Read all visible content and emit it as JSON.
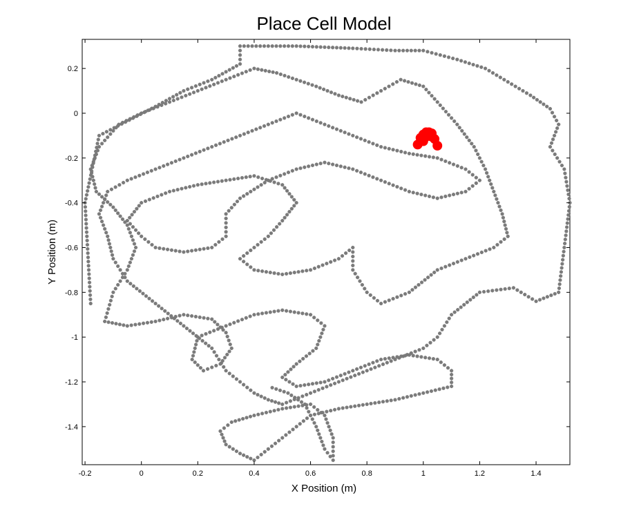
{
  "chart_data": {
    "type": "scatter",
    "title": "Place Cell Model",
    "xlabel": "X Position (m)",
    "ylabel": "Y Position (m)",
    "xlim": [
      -0.21,
      1.52
    ],
    "ylim": [
      -1.57,
      0.33
    ],
    "xticks": [
      "-0.2",
      "0",
      "0.2",
      "0.4",
      "0.6",
      "0.8",
      "1",
      "1.2",
      "1.4"
    ],
    "xtick_values": [
      -0.2,
      0,
      0.2,
      0.4,
      0.6,
      0.8,
      1.0,
      1.2,
      1.4
    ],
    "yticks": [
      "0.2",
      "0",
      "-0.2",
      "-0.4",
      "-0.6",
      "-0.8",
      "-1",
      "-1.2",
      "-1.4"
    ],
    "ytick_values": [
      0.2,
      0,
      -0.2,
      -0.4,
      -0.6,
      -0.8,
      -1.0,
      -1.2,
      -1.4
    ],
    "grid": false,
    "colors": {
      "trajectory": "#7a7a7a",
      "firing": "#ff0000"
    },
    "series": [
      {
        "role": "trajectory",
        "marker": "asterisk",
        "path": [
          [
            -0.18,
            -0.85
          ],
          [
            -0.2,
            -0.4
          ],
          [
            -0.15,
            -0.1
          ],
          [
            0.05,
            0.03
          ],
          [
            0.15,
            0.1
          ],
          [
            0.25,
            0.15
          ],
          [
            0.35,
            0.22
          ],
          [
            0.35,
            0.3
          ],
          [
            0.55,
            0.3
          ],
          [
            0.75,
            0.29
          ],
          [
            0.9,
            0.28
          ],
          [
            1.0,
            0.28
          ],
          [
            1.12,
            0.24
          ],
          [
            1.22,
            0.2
          ],
          [
            1.3,
            0.14
          ],
          [
            1.38,
            0.08
          ],
          [
            1.45,
            0.02
          ],
          [
            1.48,
            -0.05
          ],
          [
            1.45,
            -0.15
          ],
          [
            1.5,
            -0.25
          ],
          [
            1.52,
            -0.4
          ],
          [
            1.5,
            -0.6
          ],
          [
            1.48,
            -0.8
          ],
          [
            1.4,
            -0.84
          ],
          [
            1.32,
            -0.78
          ],
          [
            1.2,
            -0.8
          ],
          [
            1.1,
            -0.9
          ],
          [
            1.05,
            -1.0
          ],
          [
            1.0,
            -1.05
          ],
          [
            0.9,
            -1.1
          ],
          [
            0.8,
            -1.15
          ],
          [
            0.7,
            -1.2
          ],
          [
            0.6,
            -1.25
          ],
          [
            0.5,
            -1.3
          ],
          [
            0.45,
            -1.28
          ],
          [
            0.4,
            -1.25
          ],
          [
            0.35,
            -1.2
          ],
          [
            0.3,
            -1.15
          ],
          [
            0.25,
            -1.05
          ],
          [
            0.15,
            -0.95
          ],
          [
            0.05,
            -0.85
          ],
          [
            -0.05,
            -0.75
          ],
          [
            -0.1,
            -0.65
          ],
          [
            -0.12,
            -0.55
          ],
          [
            -0.15,
            -0.45
          ],
          [
            -0.12,
            -0.35
          ],
          [
            -0.05,
            -0.3
          ],
          [
            0.05,
            -0.25
          ],
          [
            0.15,
            -0.2
          ],
          [
            0.25,
            -0.15
          ],
          [
            0.35,
            -0.1
          ],
          [
            0.45,
            -0.05
          ],
          [
            0.55,
            0.0
          ],
          [
            0.65,
            -0.05
          ],
          [
            0.75,
            -0.1
          ],
          [
            0.85,
            -0.15
          ],
          [
            0.95,
            -0.18
          ],
          [
            1.05,
            -0.2
          ],
          [
            1.15,
            -0.25
          ],
          [
            1.2,
            -0.3
          ],
          [
            1.15,
            -0.35
          ],
          [
            1.05,
            -0.38
          ],
          [
            0.95,
            -0.35
          ],
          [
            0.85,
            -0.3
          ],
          [
            0.75,
            -0.25
          ],
          [
            0.65,
            -0.22
          ],
          [
            0.55,
            -0.25
          ],
          [
            0.45,
            -0.3
          ],
          [
            0.35,
            -0.38
          ],
          [
            0.3,
            -0.45
          ],
          [
            0.3,
            -0.55
          ],
          [
            0.25,
            -0.6
          ],
          [
            0.15,
            -0.62
          ],
          [
            0.05,
            -0.6
          ],
          [
            0.0,
            -0.55
          ],
          [
            -0.05,
            -0.48
          ],
          [
            0.0,
            -0.4
          ],
          [
            0.1,
            -0.35
          ],
          [
            0.2,
            -0.32
          ],
          [
            0.3,
            -0.3
          ],
          [
            0.4,
            -0.28
          ],
          [
            0.5,
            -0.32
          ],
          [
            0.55,
            -0.4
          ],
          [
            0.5,
            -0.48
          ],
          [
            0.45,
            -0.55
          ],
          [
            0.4,
            -0.6
          ],
          [
            0.35,
            -0.65
          ],
          [
            0.4,
            -0.7
          ],
          [
            0.5,
            -0.72
          ],
          [
            0.6,
            -0.7
          ],
          [
            0.7,
            -0.65
          ],
          [
            0.75,
            -0.6
          ],
          [
            0.75,
            -0.7
          ],
          [
            0.8,
            -0.8
          ],
          [
            0.85,
            -0.85
          ],
          [
            0.95,
            -0.8
          ],
          [
            1.05,
            -0.7
          ],
          [
            1.15,
            -0.65
          ],
          [
            1.25,
            -0.6
          ],
          [
            1.3,
            -0.55
          ],
          [
            1.28,
            -0.45
          ],
          [
            1.25,
            -0.35
          ],
          [
            1.22,
            -0.25
          ],
          [
            1.18,
            -0.15
          ],
          [
            1.12,
            -0.05
          ],
          [
            1.05,
            0.05
          ],
          [
            1.0,
            0.12
          ],
          [
            0.92,
            0.15
          ],
          [
            0.85,
            0.1
          ],
          [
            0.78,
            0.05
          ],
          [
            0.7,
            0.08
          ],
          [
            0.62,
            0.12
          ],
          [
            0.55,
            0.15
          ],
          [
            0.48,
            0.18
          ],
          [
            0.4,
            0.2
          ],
          [
            0.3,
            0.15
          ],
          [
            0.2,
            0.1
          ],
          [
            0.1,
            0.05
          ],
          [
            0.0,
            0.0
          ],
          [
            -0.08,
            -0.05
          ],
          [
            -0.15,
            -0.15
          ],
          [
            -0.18,
            -0.25
          ],
          [
            -0.16,
            -0.35
          ],
          [
            -0.1,
            -0.42
          ],
          [
            -0.05,
            -0.5
          ],
          [
            -0.02,
            -0.6
          ],
          [
            -0.05,
            -0.7
          ],
          [
            -0.1,
            -0.8
          ],
          [
            -0.13,
            -0.93
          ],
          [
            -0.05,
            -0.95
          ],
          [
            0.05,
            -0.93
          ],
          [
            0.15,
            -0.9
          ],
          [
            0.25,
            -0.92
          ],
          [
            0.3,
            -0.98
          ],
          [
            0.32,
            -1.05
          ],
          [
            0.28,
            -1.12
          ],
          [
            0.22,
            -1.15
          ],
          [
            0.18,
            -1.1
          ],
          [
            0.2,
            -1.0
          ],
          [
            0.3,
            -0.95
          ],
          [
            0.4,
            -0.9
          ],
          [
            0.5,
            -0.88
          ],
          [
            0.6,
            -0.9
          ],
          [
            0.65,
            -0.95
          ],
          [
            0.62,
            -1.05
          ],
          [
            0.55,
            -1.12
          ],
          [
            0.5,
            -1.18
          ],
          [
            0.55,
            -1.22
          ],
          [
            0.65,
            -1.2
          ],
          [
            0.75,
            -1.15
          ],
          [
            0.85,
            -1.1
          ],
          [
            0.95,
            -1.08
          ],
          [
            1.05,
            -1.1
          ],
          [
            1.1,
            -1.15
          ],
          [
            1.1,
            -1.22
          ],
          [
            1.0,
            -1.25
          ],
          [
            0.9,
            -1.28
          ],
          [
            0.8,
            -1.3
          ],
          [
            0.7,
            -1.32
          ],
          [
            0.6,
            -1.35
          ],
          [
            0.55,
            -1.4
          ],
          [
            0.5,
            -1.45
          ],
          [
            0.45,
            -1.5
          ],
          [
            0.4,
            -1.55
          ],
          [
            0.35,
            -1.52
          ],
          [
            0.3,
            -1.48
          ],
          [
            0.28,
            -1.42
          ],
          [
            0.32,
            -1.38
          ],
          [
            0.4,
            -1.35
          ],
          [
            0.5,
            -1.32
          ],
          [
            0.6,
            -1.3
          ],
          [
            0.65,
            -1.35
          ],
          [
            0.68,
            -1.45
          ],
          [
            0.68,
            -1.55
          ],
          [
            0.65,
            -1.5
          ],
          [
            0.62,
            -1.4
          ],
          [
            0.58,
            -1.3
          ],
          [
            0.52,
            -1.25
          ],
          [
            0.45,
            -1.22
          ]
        ]
      },
      {
        "role": "firing",
        "marker": "circle",
        "x": [
          0.98,
          0.99,
          1.0,
          1.01,
          1.02,
          1.03,
          1.04,
          1.05,
          1.0,
          1.01,
          1.02,
          1.03
        ],
        "y": [
          -0.14,
          -0.11,
          -0.095,
          -0.085,
          -0.085,
          -0.09,
          -0.115,
          -0.145,
          -0.125,
          -0.105,
          -0.095,
          -0.105
        ]
      }
    ]
  }
}
